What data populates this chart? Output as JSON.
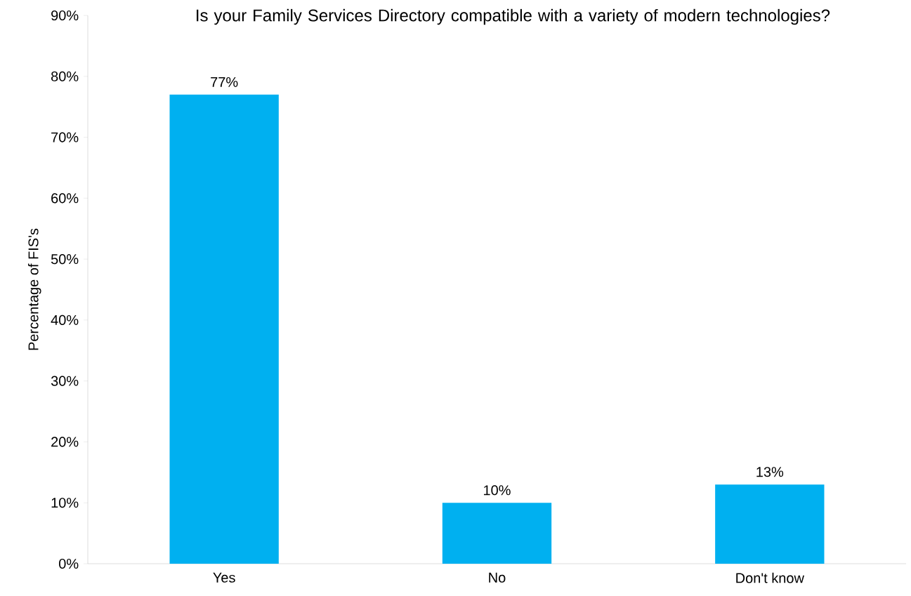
{
  "chart_data": {
    "type": "bar",
    "title": "Is your Family Services Directory compatible with a variety of modern technologies?",
    "ylabel": "Percentage of FIS's",
    "categories": [
      "Yes",
      "No",
      "Don't know"
    ],
    "values": [
      77,
      10,
      13
    ],
    "value_labels": [
      "77%",
      "10%",
      "13%"
    ],
    "color": "#00b0f0",
    "ylim": [
      0,
      90
    ],
    "yticks": [
      {
        "value": 0,
        "label": "0%"
      },
      {
        "value": 10,
        "label": "10%"
      },
      {
        "value": 20,
        "label": "20%"
      },
      {
        "value": 30,
        "label": "30%"
      },
      {
        "value": 40,
        "label": "40%"
      },
      {
        "value": 50,
        "label": "50%"
      },
      {
        "value": 60,
        "label": "60%"
      },
      {
        "value": 70,
        "label": "70%"
      },
      {
        "value": 80,
        "label": "80%"
      },
      {
        "value": 90,
        "label": "90%"
      }
    ],
    "grid": false
  }
}
